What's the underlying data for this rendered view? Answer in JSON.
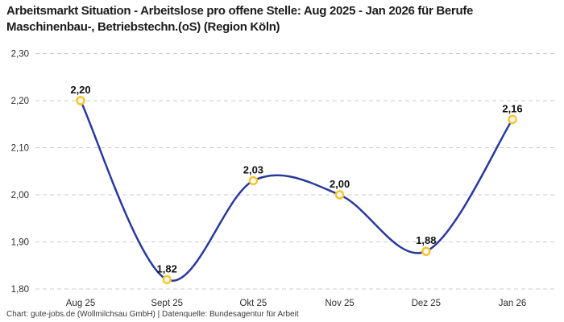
{
  "header": {
    "title": "Arbeitsmarkt Situation - Arbeitslose pro offene Stelle: Aug 2025 - Jan 2026 für Berufe Maschinenbau-, Betriebstechn.(oS) (Region Köln)"
  },
  "footer": {
    "credit": "Chart: gute-jobs.de (Wollmilchsau GmbH) | Datenquelle: Bundesagentur für Arbeit"
  },
  "chart_data": {
    "type": "line",
    "title": "Arbeitsmarkt Situation - Arbeitslose pro offene Stelle: Aug 2025 - Jan 2026 für Berufe Maschinenbau-, Betriebstechn.(oS) (Region Köln)",
    "categories": [
      "Aug 25",
      "Sept 25",
      "Okt 25",
      "Nov 25",
      "Dez 25",
      "Jan 26"
    ],
    "values": [
      2.2,
      1.82,
      2.03,
      2.0,
      1.88,
      2.16
    ],
    "value_labels": [
      "2,20",
      "1,82",
      "2,03",
      "2,00",
      "1,88",
      "2,16"
    ],
    "y_ticks": {
      "values": [
        2.3,
        2.2,
        2.1,
        2.0,
        1.9,
        1.8
      ],
      "labels": [
        "2,30",
        "2,20",
        "2,10",
        "2,00",
        "1,90",
        "1,80"
      ]
    },
    "ylim": [
      1.8,
      2.3
    ],
    "xlabel": "",
    "ylabel": "",
    "grid": "horizontal-dashed",
    "legend": "none",
    "line_smoothing": "spline",
    "colors": {
      "line": "#2a3a9c",
      "marker_ring": "#fbc42d",
      "marker_fill": "#ffffff",
      "gridline": "#cbcbcb",
      "tick_text": "#2e2e2e",
      "data_label_text": "#111111",
      "title_text": "#1c1c1c",
      "background": "#ffffff"
    }
  }
}
